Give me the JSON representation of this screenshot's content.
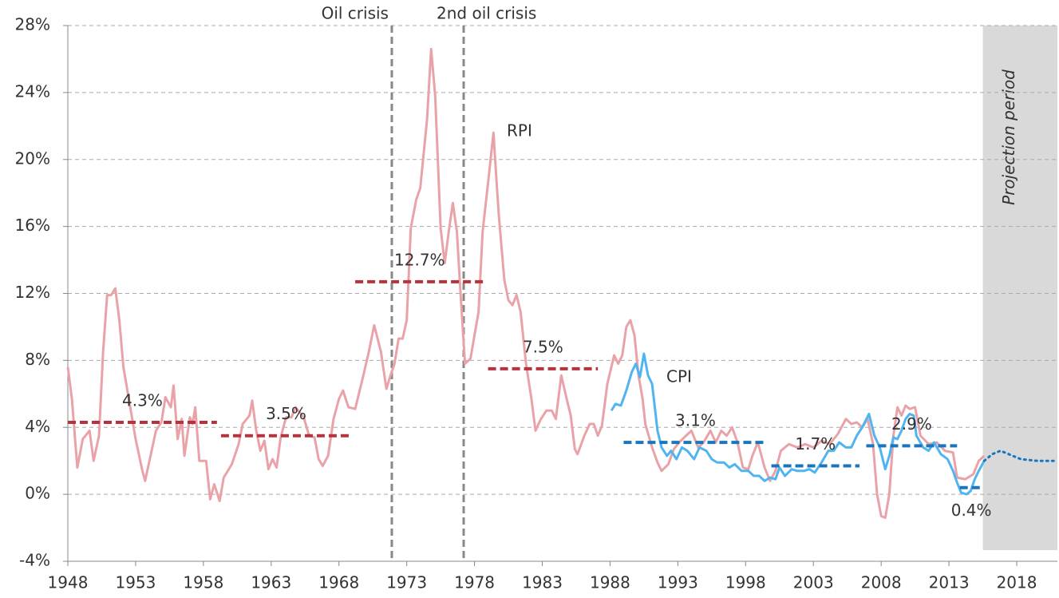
{
  "chart_data": {
    "type": "line",
    "xlim": [
      1948,
      2021
    ],
    "xticks": [
      1948,
      1953,
      1958,
      1963,
      1968,
      1973,
      1978,
      1983,
      1988,
      1993,
      1998,
      2003,
      2008,
      2013,
      2018
    ],
    "ylim": [
      -4,
      28
    ],
    "yticks": [
      {
        "value": -4,
        "label": "-4%"
      },
      {
        "value": 0,
        "label": "0%"
      },
      {
        "value": 4,
        "label": "4%"
      },
      {
        "value": 8,
        "label": "8%"
      },
      {
        "value": 12,
        "label": "12%"
      },
      {
        "value": 16,
        "label": "16%"
      },
      {
        "value": 20,
        "label": "20%"
      },
      {
        "value": 24,
        "label": "24%"
      },
      {
        "value": 28,
        "label": "28%"
      }
    ],
    "grid": true,
    "series": [
      {
        "name": "RPI",
        "color": "#e9a3a8",
        "label_color": "#b8323d",
        "x": [
          1948.0,
          1948.3,
          1948.7,
          1949.1,
          1949.6,
          1949.9,
          1950.3,
          1950.6,
          1950.9,
          1951.2,
          1951.5,
          1951.8,
          1952.1,
          1952.5,
          1953.0,
          1953.5,
          1953.7,
          1954.1,
          1954.5,
          1954.9,
          1955.2,
          1955.6,
          1955.8,
          1956.1,
          1956.4,
          1956.6,
          1957.0,
          1957.2,
          1957.4,
          1957.7,
          1958.2,
          1958.5,
          1958.8,
          1959.2,
          1959.5,
          1960.1,
          1960.6,
          1960.9,
          1961.4,
          1961.6,
          1961.9,
          1962.2,
          1962.5,
          1962.8,
          1963.1,
          1963.4,
          1963.7,
          1964.1,
          1964.5,
          1964.8,
          1965.4,
          1965.8,
          1966.2,
          1966.5,
          1966.8,
          1967.2,
          1967.6,
          1968.0,
          1968.3,
          1968.7,
          1969.2,
          1969.8,
          1970.2,
          1970.6,
          1971.1,
          1971.5,
          1971.8,
          1972.1,
          1972.4,
          1972.7,
          1973.0,
          1973.3,
          1973.7,
          1974.0,
          1974.5,
          1974.8,
          1975.1,
          1975.5,
          1975.8,
          1976.1,
          1976.4,
          1976.7,
          1977.0,
          1977.3,
          1977.7,
          1978.0,
          1978.3,
          1978.6,
          1979.0,
          1979.4,
          1979.6,
          1979.8,
          1980.2,
          1980.5,
          1980.8,
          1981.1,
          1981.4,
          1981.8,
          1982.2,
          1982.5,
          1982.9,
          1983.3,
          1983.7,
          1984.0,
          1984.4,
          1984.8,
          1985.1,
          1985.4,
          1985.6,
          1986.1,
          1986.5,
          1986.8,
          1987.1,
          1987.4,
          1987.8,
          1988.3,
          1988.6,
          1988.9,
          1989.2,
          1989.5,
          1989.8,
          1990.1,
          1990.4,
          1990.6,
          1991.1,
          1991.5,
          1991.8,
          1992.3,
          1992.7,
          1993.1,
          1993.6,
          1994.0,
          1994.5,
          1994.9,
          1995.4,
          1995.8,
          1996.2,
          1996.6,
          1997.0,
          1997.4,
          1997.8,
          1998.2,
          1998.5,
          1998.9,
          1999.4,
          1999.8,
          2000.2,
          2000.6,
          2001.2,
          2001.8,
          2002.4,
          2003.0,
          2003.6,
          2004.2,
          2004.8,
          2005.4,
          2005.8,
          2006.2,
          2006.6,
          2007.0,
          2007.4,
          2007.7,
          2008.0,
          2008.3,
          2008.6,
          2008.9,
          2009.2,
          2009.5,
          2009.8,
          2010.1,
          2010.5,
          2010.9,
          2011.5,
          2012.1,
          2012.7,
          2013.3,
          2013.6,
          2014.2,
          2014.8,
          2015.2,
          2015.6
        ],
        "values": [
          7.6,
          5.7,
          1.6,
          3.3,
          3.8,
          2.0,
          3.5,
          8.5,
          11.9,
          11.9,
          12.3,
          10.4,
          7.6,
          5.7,
          3.3,
          1.4,
          0.8,
          2.3,
          3.8,
          4.3,
          5.8,
          5.2,
          6.5,
          3.3,
          4.5,
          2.3,
          4.6,
          4.2,
          5.2,
          2.0,
          2.0,
          -0.3,
          0.6,
          -0.4,
          1.0,
          1.8,
          3.0,
          4.2,
          4.7,
          5.6,
          3.8,
          2.6,
          3.2,
          1.5,
          2.1,
          1.6,
          3.4,
          4.6,
          4.6,
          5.2,
          4.6,
          3.5,
          3.4,
          2.1,
          1.7,
          2.3,
          4.5,
          5.7,
          6.2,
          5.2,
          5.1,
          7.1,
          8.5,
          10.1,
          8.5,
          6.3,
          7.1,
          7.8,
          9.3,
          9.3,
          10.4,
          15.9,
          17.6,
          18.3,
          22.4,
          26.6,
          23.8,
          15.9,
          13.8,
          15.7,
          17.4,
          15.7,
          11.6,
          7.8,
          8.1,
          9.5,
          10.9,
          15.7,
          18.6,
          21.6,
          19.0,
          16.6,
          12.8,
          11.6,
          11.3,
          11.9,
          10.9,
          7.8,
          5.7,
          3.8,
          4.5,
          5.0,
          5.0,
          4.5,
          7.1,
          5.7,
          4.7,
          2.7,
          2.4,
          3.5,
          4.2,
          4.2,
          3.5,
          4.1,
          6.6,
          8.3,
          7.8,
          8.3,
          10.0,
          10.4,
          9.5,
          7.1,
          5.7,
          4.2,
          2.8,
          1.9,
          1.4,
          1.8,
          2.7,
          3.1,
          3.5,
          3.8,
          2.8,
          3.1,
          3.8,
          3.1,
          3.8,
          3.5,
          4.0,
          3.1,
          1.6,
          1.5,
          2.3,
          3.1,
          1.6,
          0.8,
          1.4,
          2.6,
          3.0,
          2.8,
          3.0,
          2.8,
          3.2,
          3.0,
          3.6,
          4.5,
          4.2,
          4.3,
          4.0,
          4.5,
          3.0,
          0.0,
          -1.3,
          -1.4,
          0.0,
          3.5,
          5.2,
          4.7,
          5.3,
          5.1,
          5.2,
          3.5,
          3.0,
          3.1,
          2.6,
          2.5,
          1.0,
          0.9,
          1.2,
          2.0,
          2.3
        ]
      },
      {
        "name": "CPI",
        "color": "#4fb4f0",
        "label_color": "#1b75bc",
        "x": [
          1988.1,
          1988.4,
          1988.8,
          1989.2,
          1989.6,
          1989.9,
          1990.2,
          1990.5,
          1990.8,
          1991.1,
          1991.5,
          1991.8,
          1992.2,
          1992.5,
          1992.9,
          1993.3,
          1993.7,
          1994.2,
          1994.6,
          1995.1,
          1995.5,
          1995.9,
          1996.4,
          1996.8,
          1997.2,
          1997.7,
          1998.2,
          1998.6,
          1999.0,
          1999.4,
          1999.8,
          2000.2,
          2000.5,
          2000.9,
          2001.4,
          2001.8,
          2002.3,
          2002.7,
          2003.1,
          2003.6,
          2004.1,
          2004.5,
          2004.9,
          2005.4,
          2005.8,
          2006.2,
          2006.6,
          2007.1,
          2007.5,
          2007.9,
          2008.3,
          2008.6,
          2008.9,
          2009.2,
          2009.5,
          2009.8,
          2010.1,
          2010.4,
          2010.6,
          2011.1,
          2011.5,
          2011.9,
          2012.4,
          2012.9,
          2013.3,
          2013.6,
          2013.9,
          2014.3,
          2014.6,
          2014.9,
          2015.2,
          2015.6
        ],
        "values": [
          5.0,
          5.4,
          5.3,
          6.2,
          7.3,
          7.8,
          7.0,
          8.4,
          7.1,
          6.6,
          3.8,
          2.8,
          2.3,
          2.6,
          2.1,
          2.8,
          2.6,
          2.1,
          2.8,
          2.6,
          2.1,
          1.9,
          1.9,
          1.6,
          1.8,
          1.4,
          1.4,
          1.1,
          1.1,
          0.8,
          1.0,
          0.9,
          1.6,
          1.1,
          1.5,
          1.4,
          1.4,
          1.5,
          1.3,
          1.9,
          2.6,
          2.6,
          3.1,
          2.8,
          2.8,
          3.5,
          4.0,
          4.8,
          3.5,
          2.8,
          1.5,
          2.3,
          3.4,
          3.3,
          3.8,
          4.5,
          4.8,
          4.7,
          3.5,
          2.8,
          2.6,
          3.1,
          2.4,
          2.1,
          1.4,
          0.7,
          0.1,
          0.0,
          0.2,
          0.9,
          1.4,
          2.0
        ]
      }
    ],
    "projection": {
      "color": "#1b75bc",
      "x": [
        2015.6,
        2016.2,
        2016.8,
        2017.4,
        2018.3,
        2019.5,
        2020.9
      ],
      "values": [
        2.0,
        2.4,
        2.6,
        2.4,
        2.1,
        2.0,
        2.0
      ]
    },
    "period_averages": {
      "x_start": [
        1948,
        1959.3,
        1969.2,
        1979.0,
        1989.0,
        1999.9,
        2006.9,
        2013.8
      ],
      "x_end": [
        1959.0,
        1968.9,
        1978.7,
        1987.1,
        1999.6,
        2006.4,
        2013.6,
        2015.5
      ],
      "values": [
        4.3,
        3.5,
        12.7,
        7.5,
        3.1,
        1.7,
        2.9,
        0.4
      ],
      "value_labels": [
        "4.3%",
        "3.5%",
        "12.7%",
        "7.5%",
        "3.1%",
        "1.7%",
        "2.9%",
        "0.4%"
      ],
      "colors": [
        "#b8323d",
        "#b8323d",
        "#b8323d",
        "#b8323d",
        "#1b75bc",
        "#1b75bc",
        "#1b75bc",
        "#1b75bc"
      ]
    },
    "events": [
      {
        "x": 1971.9,
        "label": "Oil crisis"
      },
      {
        "x": 1977.2,
        "label": "2nd oil crisis"
      }
    ],
    "shaded_region": {
      "x": [
        2015.5,
        2021
      ],
      "label": "Projection period"
    }
  }
}
